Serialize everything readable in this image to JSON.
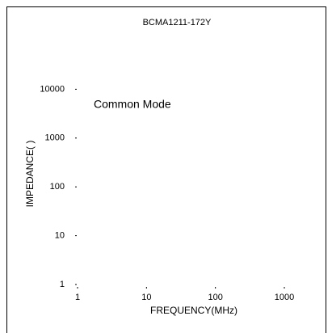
{
  "chart_data": {
    "type": "line",
    "title": "BCMA1211-172Y",
    "annotation": "Common Mode",
    "xlabel": "FREQUENCY(MHz)",
    "ylabel": "IMPEDANCE( )",
    "xscale": "log",
    "yscale": "log",
    "xlim": [
      1,
      1000
    ],
    "xticks": [
      1,
      10,
      100,
      1000
    ],
    "ylim": [
      1,
      100000
    ],
    "yticks": [
      1,
      10,
      100,
      1000,
      10000
    ],
    "series": []
  }
}
